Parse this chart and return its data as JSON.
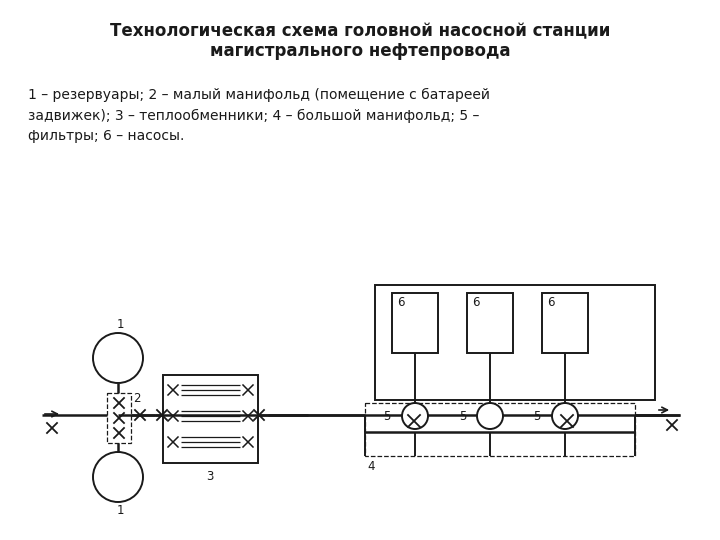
{
  "title_line1": "Технологическая схема головной насосной станции",
  "title_line2": "магистрального нефтепровода",
  "caption": "1 – резервуары; 2 – малый манифольд (помещение с батареей\nзадвижек); 3 – теплообменники; 4 – большой манифольд; 5 –\nфильтры; 6 – насосы.",
  "bg_color": "#ffffff",
  "line_color": "#1a1a1a",
  "lw": 1.4,
  "lw_thin": 0.9,
  "lw_pipe": 1.8
}
